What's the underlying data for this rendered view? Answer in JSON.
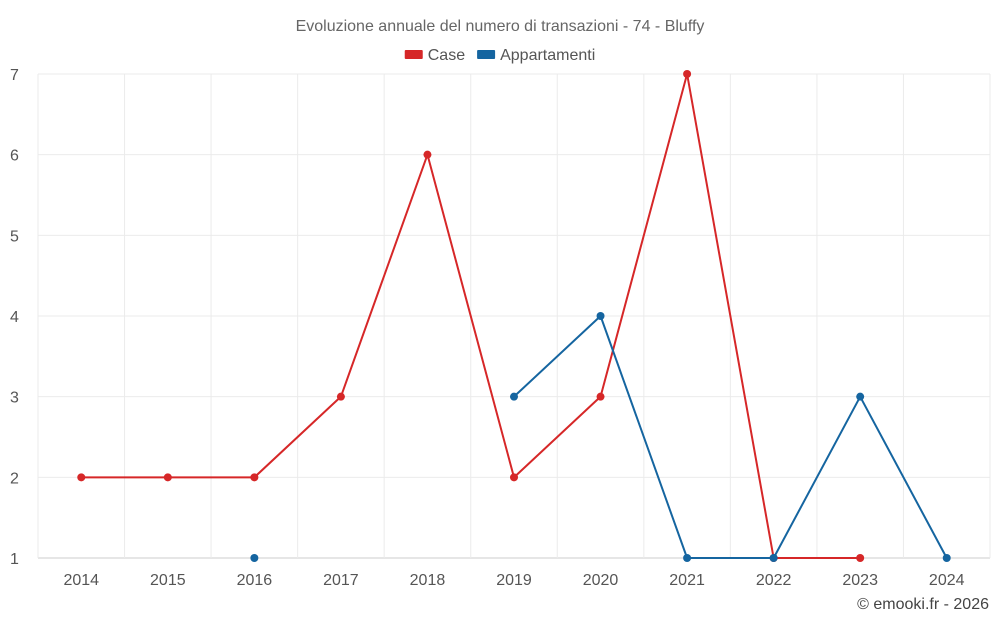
{
  "chart_data": {
    "type": "line",
    "title": "Evoluzione annuale del numero di transazioni - 74 - Bluffy",
    "x": [
      "2014",
      "2015",
      "2016",
      "2017",
      "2018",
      "2019",
      "2020",
      "2021",
      "2022",
      "2023",
      "2024"
    ],
    "ylim": [
      1,
      7
    ],
    "yticks": [
      "1",
      "2",
      "3",
      "4",
      "5",
      "6",
      "7"
    ],
    "grid": true,
    "legend_position": "top-center",
    "series": [
      {
        "name": "Case",
        "color": "#d62728",
        "values": [
          2,
          2,
          2,
          3,
          6,
          2,
          3,
          7,
          1,
          1,
          null
        ]
      },
      {
        "name": "Appartamenti",
        "color": "#1565a0",
        "values": [
          null,
          null,
          1,
          null,
          null,
          3,
          4,
          1,
          1,
          3,
          1
        ]
      }
    ]
  },
  "credit": "© emooki.fr - 2026"
}
